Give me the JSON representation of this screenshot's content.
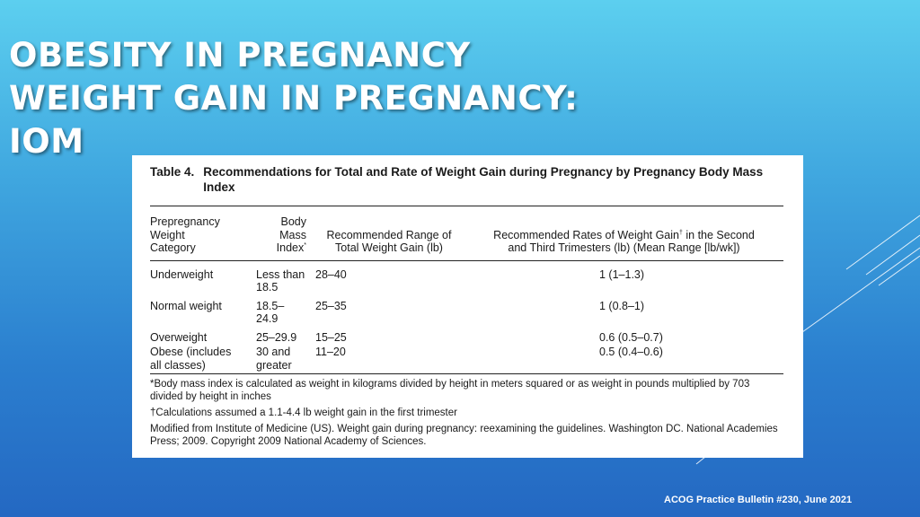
{
  "slide": {
    "title_lines": [
      "OBESITY IN PREGNANCY",
      "WEIGHT GAIN IN PREGNANCY:",
      "IOM"
    ],
    "source": "ACOG Practice Bulletin #230, June 2021"
  },
  "table": {
    "caption_number": "Table 4.",
    "caption_text": "Recommendations for Total and Rate of Weight Gain during Pregnancy by Pregnancy Body Mass Index",
    "headers": {
      "c1_lines": [
        "Prepregnancy",
        "Weight",
        "Category"
      ],
      "c2_lines": [
        "Body",
        "Mass",
        "Index"
      ],
      "c2_mark": "*",
      "c3_lines": [
        "Recommended Range of",
        "Total Weight Gain (lb)"
      ],
      "c4_line1a": "Recommended Rates of Weight Gain",
      "c4_mark": "†",
      "c4_line1b": " in the Second",
      "c4_line2": "and Third Trimesters (lb) (Mean Range [lb/wk])"
    },
    "rows": [
      {
        "category": [
          "Underweight"
        ],
        "bmi": [
          "Less than",
          "18.5"
        ],
        "range": "28–40",
        "rate": "1 (1–1.3)"
      },
      {
        "category": [
          "Normal weight"
        ],
        "bmi": [
          "18.5–",
          "24.9"
        ],
        "range": "25–35",
        "rate": "1 (0.8–1)"
      },
      {
        "category": [
          "Overweight"
        ],
        "bmi": [
          "25–29.9"
        ],
        "range": "15–25",
        "rate": "0.6 (0.5–0.7)"
      },
      {
        "category": [
          "Obese (includes",
          "all classes)"
        ],
        "bmi": [
          "30 and",
          "greater"
        ],
        "range": "11–20",
        "rate": "0.5 (0.4–0.6)"
      }
    ],
    "footnotes": [
      "*Body mass index is calculated as weight in kilograms divided by height in meters squared or as weight in pounds multiplied by 703 divided by height in inches",
      "†Calculations assumed a 1.1-4.4 lb weight gain in the first trimester",
      "Modified from Institute of Medicine (US). Weight gain during pregnancy: reexamining the guidelines. Washington DC. National Academies Press; 2009. Copyright 2009 National Academy of Sciences."
    ]
  },
  "colors": {
    "background_top": "#5ccfef",
    "background_bottom": "#2468c2",
    "title_text": "#ffffff",
    "table_background": "#ffffff"
  }
}
